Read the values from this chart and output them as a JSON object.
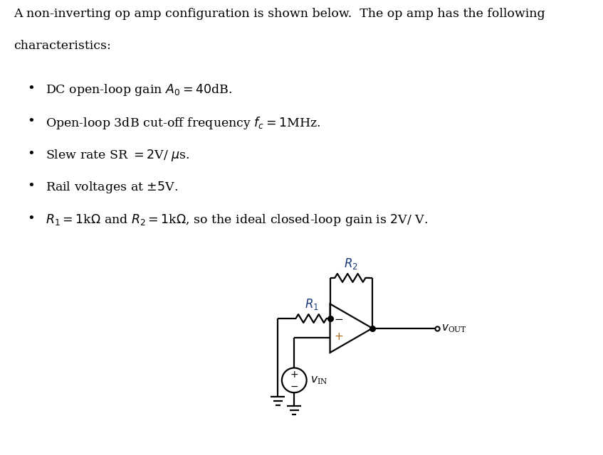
{
  "bg_color": "#ffffff",
  "line_color": "#000000",
  "label_color_R": "#1a3a7a",
  "label_color_plus": "#b06820",
  "label_color_vout": "#404040",
  "lw": 1.6,
  "fig_w": 8.47,
  "fig_h": 6.4,
  "dpi": 100
}
